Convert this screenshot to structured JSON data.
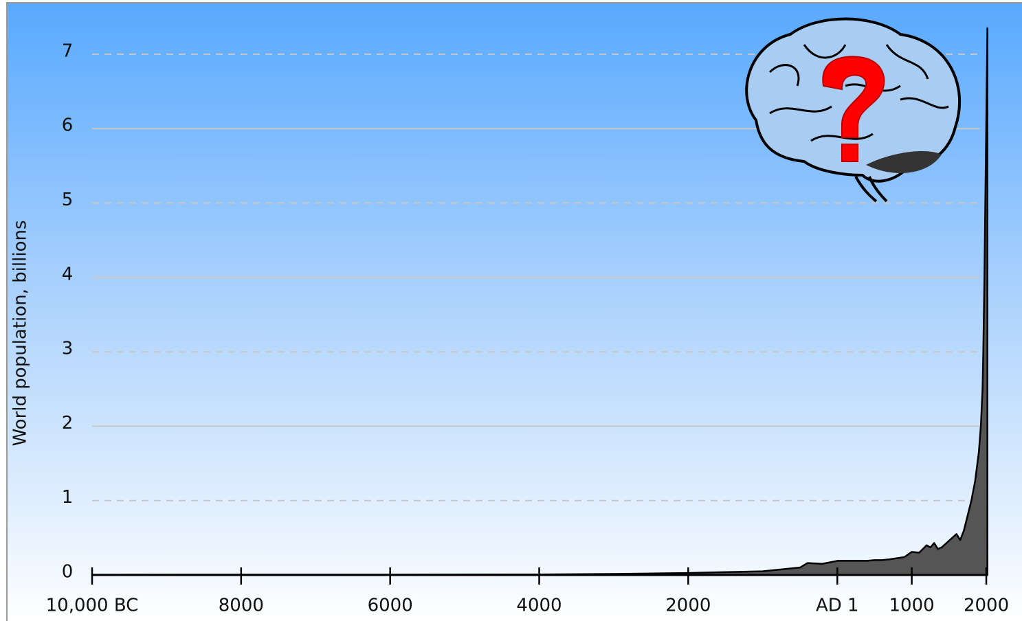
{
  "chart_data": {
    "type": "area",
    "y_label": "World population, billions",
    "x": [
      -10000,
      -8000,
      -6000,
      -4000,
      -3000,
      -2000,
      -1000,
      -500,
      -400,
      -200,
      1,
      200,
      400,
      500,
      600,
      700,
      900,
      1000,
      1100,
      1200,
      1250,
      1300,
      1350,
      1400,
      1500,
      1600,
      1650,
      1700,
      1750,
      1800,
      1850,
      1900,
      1927,
      1950,
      1960,
      1975,
      1987,
      1999,
      2011,
      2015
    ],
    "values": [
      0.004,
      0.005,
      0.005,
      0.007,
      0.014,
      0.027,
      0.05,
      0.1,
      0.16,
      0.15,
      0.19,
      0.19,
      0.19,
      0.2,
      0.2,
      0.21,
      0.24,
      0.31,
      0.3,
      0.4,
      0.37,
      0.43,
      0.35,
      0.37,
      0.46,
      0.55,
      0.47,
      0.6,
      0.8,
      1.0,
      1.26,
      1.65,
      2.0,
      2.5,
      3.0,
      4.0,
      5.0,
      6.0,
      7.0,
      7.35
    ],
    "color": "#555555",
    "xlim": [
      -10000,
      2020
    ],
    "ylim": [
      0,
      7.5
    ],
    "xticks": [
      {
        "value": -10000,
        "label": "10,000 BC"
      },
      {
        "value": -8000,
        "label": "8000"
      },
      {
        "value": -6000,
        "label": "6000"
      },
      {
        "value": -4000,
        "label": "4000"
      },
      {
        "value": -2000,
        "label": "2000"
      },
      {
        "value": 1,
        "label": "AD 1"
      },
      1000,
      2000
    ],
    "yticks": [
      0,
      1,
      2,
      3,
      4,
      5,
      6,
      7
    ],
    "grid": true
  }
}
